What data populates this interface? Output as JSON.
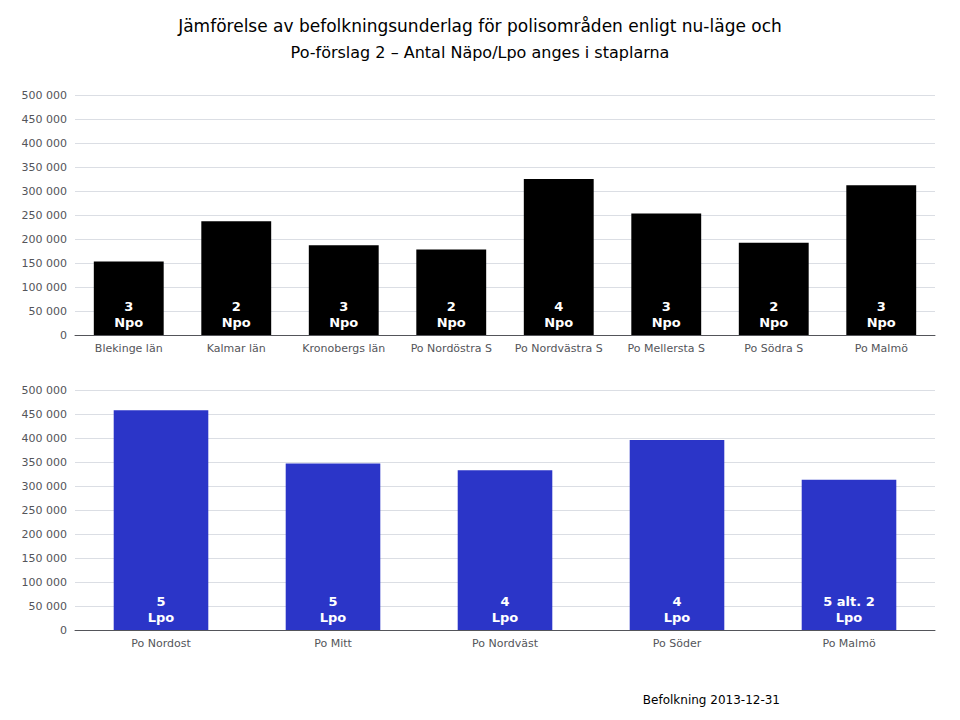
{
  "chart_data": [
    {
      "type": "bar",
      "title": "Jämförelse av befolkningsunderlag för polisområden enligt nu-läge och",
      "subtitle": "Po-förslag 2 – Antal Näpo/Lpo anges i staplarna",
      "categories": [
        "Blekinge län",
        "Kalmar län",
        "Kronobergs län",
        "Po Nordöstra S",
        "Po Nordvästra S",
        "Po Mellersta S",
        "Po Södra S",
        "Po Malmö"
      ],
      "values": [
        153000,
        237000,
        187000,
        178000,
        325000,
        253000,
        192000,
        312000
      ],
      "annotations": [
        "3\nNpo",
        "2\nNpo",
        "3\nNpo",
        "2\nNpo",
        "4\nNpo",
        "3\nNpo",
        "2\nNpo",
        "3\nNpo"
      ],
      "color": "#000000",
      "ylim": [
        0,
        500000
      ],
      "yticks": [
        0,
        {
          "value": 50000,
          "label": "50 000"
        },
        {
          "value": 100000,
          "label": "100 000"
        },
        {
          "value": 150000,
          "label": "150 000"
        },
        {
          "value": 200000,
          "label": "200 000"
        },
        {
          "value": 250000,
          "label": "250 000"
        },
        {
          "value": 300000,
          "label": "300 000"
        },
        {
          "value": 350000,
          "label": "350 000"
        },
        {
          "value": 400000,
          "label": "400 000"
        },
        {
          "value": 450000,
          "label": "450 000"
        },
        {
          "value": 500000,
          "label": "500 000"
        }
      ],
      "grid": true
    },
    {
      "type": "bar",
      "categories": [
        "Po Nordost",
        "Po Mitt",
        "Po Nordväst",
        "Po Söder",
        "Po Malmö"
      ],
      "values": [
        458000,
        347000,
        333000,
        396000,
        313000
      ],
      "annotations": [
        "5\nLpo",
        "5\nLpo",
        "4\nLpo",
        "4\nLpo",
        "5 alt. 2\nLpo"
      ],
      "color": "#2b35c8",
      "ylim": [
        0,
        500000
      ],
      "yticks": [
        0,
        {
          "value": 50000,
          "label": "50 000"
        },
        {
          "value": 100000,
          "label": "100 000"
        },
        {
          "value": 150000,
          "label": "150 000"
        },
        {
          "value": 200000,
          "label": "200 000"
        },
        {
          "value": 250000,
          "label": "250 000"
        },
        {
          "value": 300000,
          "label": "300 000"
        },
        {
          "value": 350000,
          "label": "350 000"
        },
        {
          "value": 400000,
          "label": "400 000"
        },
        {
          "value": 450000,
          "label": "450 000"
        },
        {
          "value": 500000,
          "label": "500 000"
        }
      ],
      "grid": true,
      "footnote": "Befolkning 2013-12-31"
    }
  ]
}
